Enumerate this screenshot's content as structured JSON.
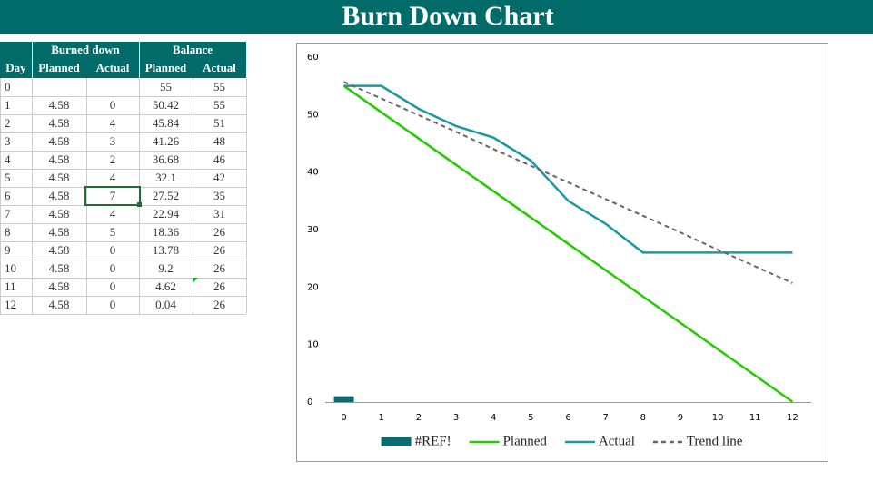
{
  "header": {
    "title": "Burn Down Chart"
  },
  "table": {
    "group_headers": [
      "Burned down",
      "Balance"
    ],
    "columns": [
      "Day",
      "Planned",
      "Actual",
      "Planned",
      "Actual"
    ],
    "rows": [
      [
        0,
        null,
        null,
        55,
        55
      ],
      [
        1,
        4.58,
        0,
        50.42,
        55
      ],
      [
        2,
        4.58,
        4,
        45.84,
        51
      ],
      [
        3,
        4.58,
        3,
        41.26,
        48
      ],
      [
        4,
        4.58,
        2,
        36.68,
        46
      ],
      [
        5,
        4.58,
        4,
        32.1,
        42
      ],
      [
        6,
        4.58,
        7,
        27.52,
        35
      ],
      [
        7,
        4.58,
        4,
        22.94,
        31
      ],
      [
        8,
        4.58,
        5,
        18.36,
        26
      ],
      [
        9,
        4.58,
        0,
        13.78,
        26
      ],
      [
        10,
        4.58,
        0,
        9.2,
        26
      ],
      [
        11,
        4.58,
        0,
        4.62,
        26
      ],
      [
        12,
        4.58,
        0,
        0.04,
        26
      ]
    ]
  },
  "chart_data": {
    "type": "line",
    "x": [
      0,
      1,
      2,
      3,
      4,
      5,
      6,
      7,
      8,
      9,
      10,
      11,
      12
    ],
    "series": [
      {
        "name": "#REF!",
        "type": "bar",
        "color": "#0b6b70",
        "values": [
          1,
          null,
          null,
          null,
          null,
          null,
          null,
          null,
          null,
          null,
          null,
          null,
          null
        ]
      },
      {
        "name": "Planned",
        "color": "#22cc00",
        "values": [
          55,
          50.42,
          45.84,
          41.26,
          36.68,
          32.1,
          27.52,
          22.94,
          18.36,
          13.78,
          9.2,
          4.62,
          0.04
        ]
      },
      {
        "name": "Actual",
        "color": "#1a9aa0",
        "values": [
          55,
          55,
          51,
          48,
          46,
          42,
          35,
          31,
          26,
          26,
          26,
          26,
          26
        ]
      },
      {
        "name": "Trend line",
        "color": "#666666",
        "dash": true,
        "values": [
          55.7,
          52.8,
          49.9,
          47.0,
          44.0,
          41.1,
          38.2,
          35.3,
          32.4,
          29.5,
          26.5,
          23.6,
          20.7
        ]
      }
    ],
    "xlim": [
      -0.5,
      12.5
    ],
    "xticks": [
      0,
      1,
      2,
      3,
      4,
      5,
      6,
      7,
      8,
      9,
      10,
      11,
      12
    ],
    "ylim": [
      0,
      60
    ],
    "yticks": [
      0,
      10,
      20,
      30,
      40,
      50,
      60
    ],
    "grid": false,
    "legend": "bottom"
  }
}
